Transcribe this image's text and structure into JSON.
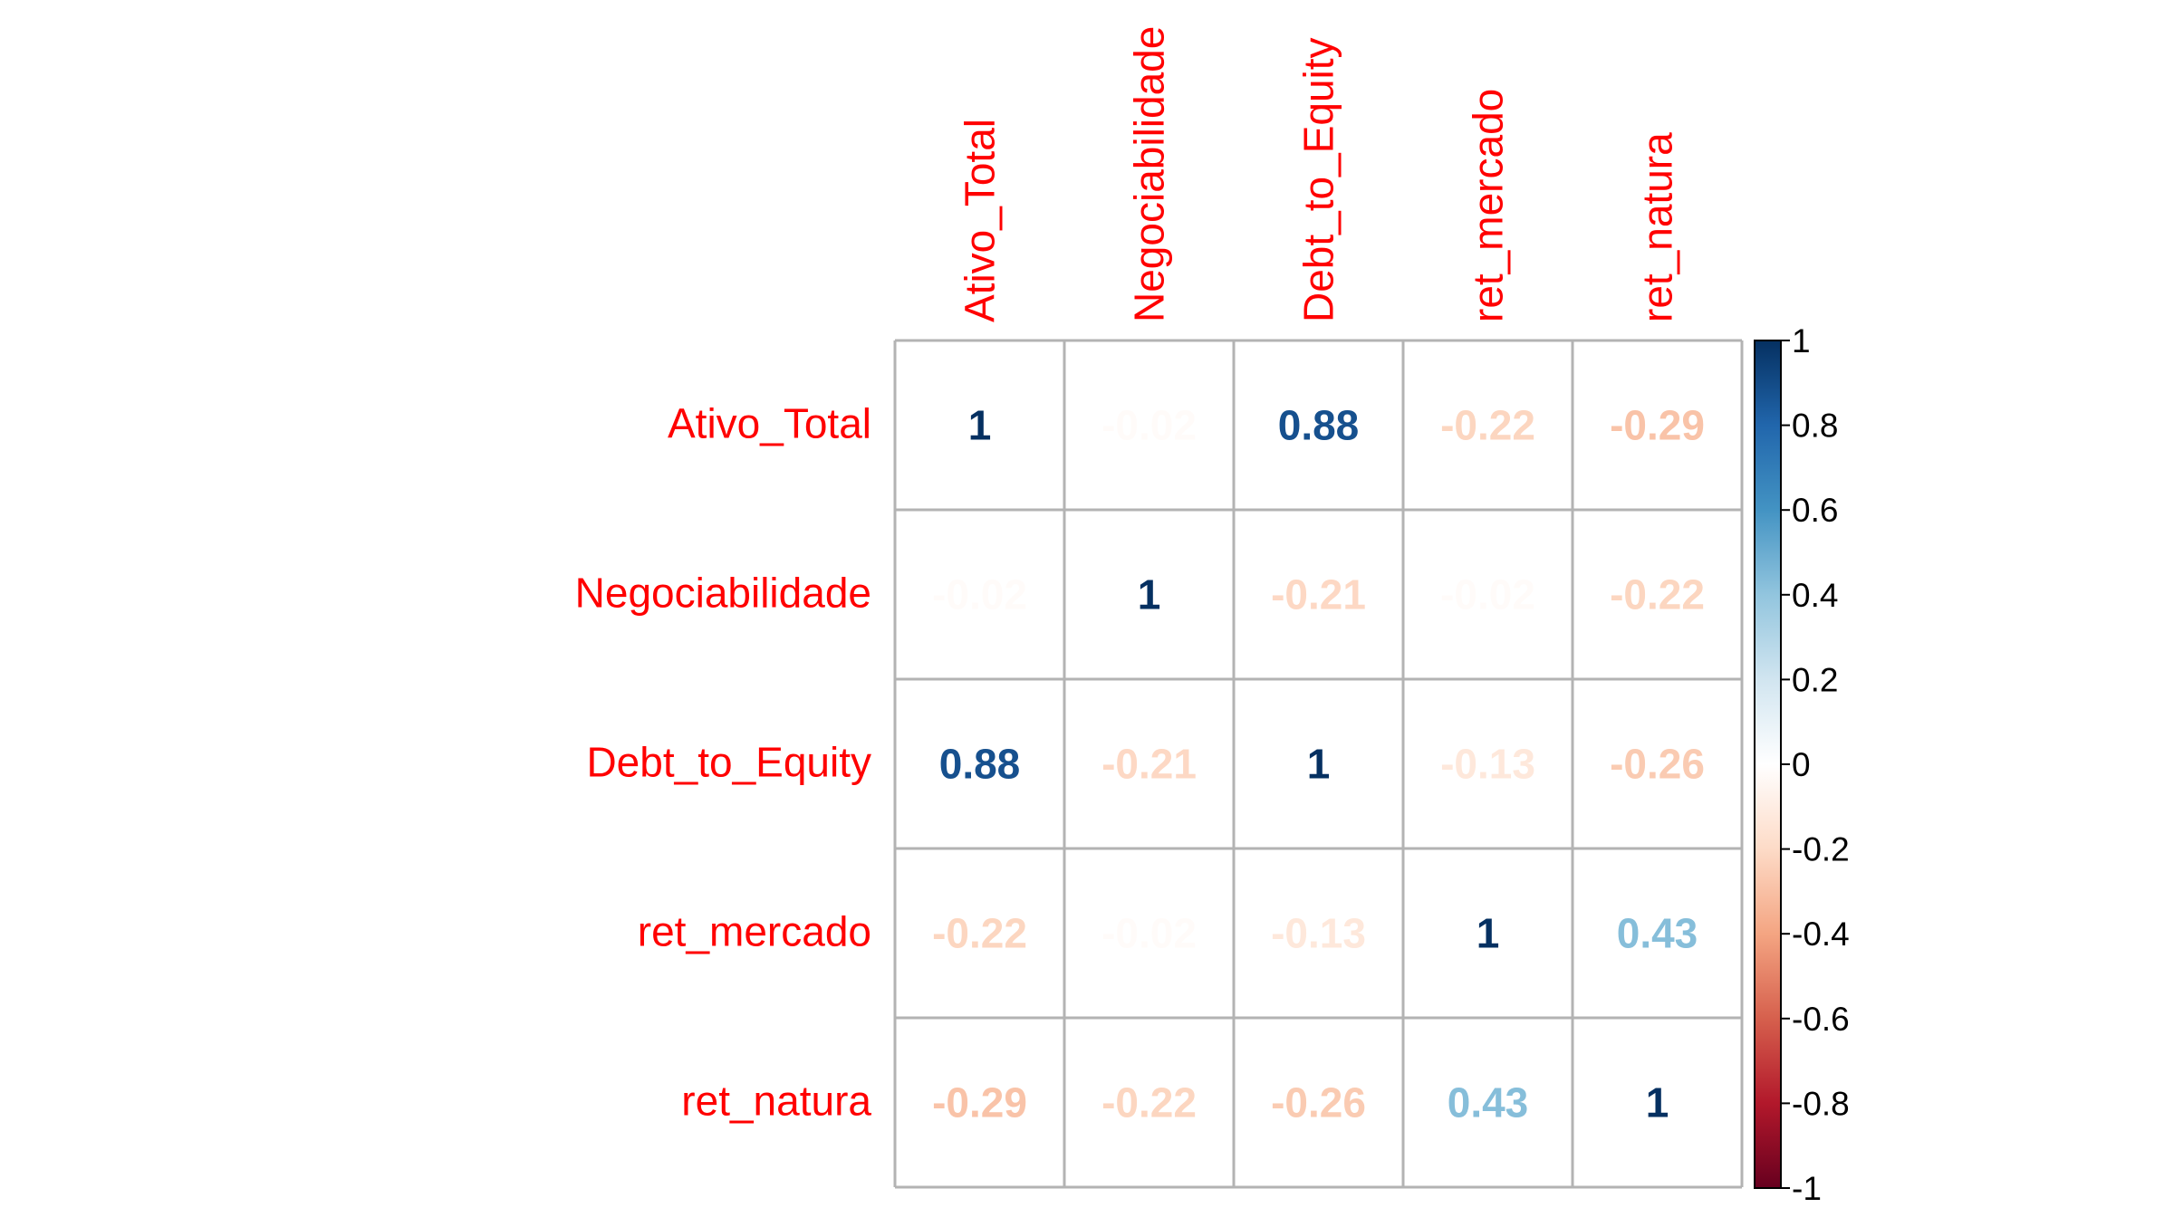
{
  "chart_data": {
    "type": "heatmap",
    "variables": [
      "Ativo_Total",
      "Negociabilidade",
      "Debt_to_Equity",
      "ret_mercado",
      "ret_natura"
    ],
    "values": [
      [
        1,
        -0.02,
        0.88,
        -0.22,
        -0.29
      ],
      [
        -0.02,
        1,
        -0.21,
        -0.02,
        -0.22
      ],
      [
        0.88,
        -0.21,
        1,
        -0.13,
        -0.26
      ],
      [
        -0.22,
        -0.02,
        -0.13,
        1,
        0.43
      ],
      [
        -0.29,
        -0.22,
        -0.26,
        0.43,
        1
      ]
    ],
    "labels": [
      [
        "1",
        "-0.02",
        "0.88",
        "-0.22",
        "-0.29"
      ],
      [
        "-0.02",
        "1",
        "-0.21",
        "-0.02",
        "-0.22"
      ],
      [
        "0.88",
        "-0.21",
        "1",
        "-0.13",
        "-0.26"
      ],
      [
        "-0.22",
        "-0.02",
        "-0.13",
        "1",
        "0.43"
      ],
      [
        "-0.29",
        "-0.22",
        "-0.26",
        "0.43",
        "1"
      ]
    ],
    "color_range": [
      -1,
      1
    ],
    "colorbar_ticks": [
      "1",
      "0.8",
      "0.6",
      "0.4",
      "0.2",
      "0",
      "-0.2",
      "-0.4",
      "-0.6",
      "-0.8",
      "-1"
    ],
    "colorbar_tick_values": [
      1,
      0.8,
      0.6,
      0.4,
      0.2,
      0,
      -0.2,
      -0.4,
      -0.6,
      -0.8,
      -1
    ],
    "label_color": "#ff0000",
    "grid_color": "#b3b3b3",
    "palette": [
      "#67001F",
      "#B2182B",
      "#D6604D",
      "#F4A582",
      "#FDDBC7",
      "#FFFFFF",
      "#D1E5F0",
      "#92C5DE",
      "#4393C3",
      "#2166AC",
      "#053061"
    ]
  }
}
